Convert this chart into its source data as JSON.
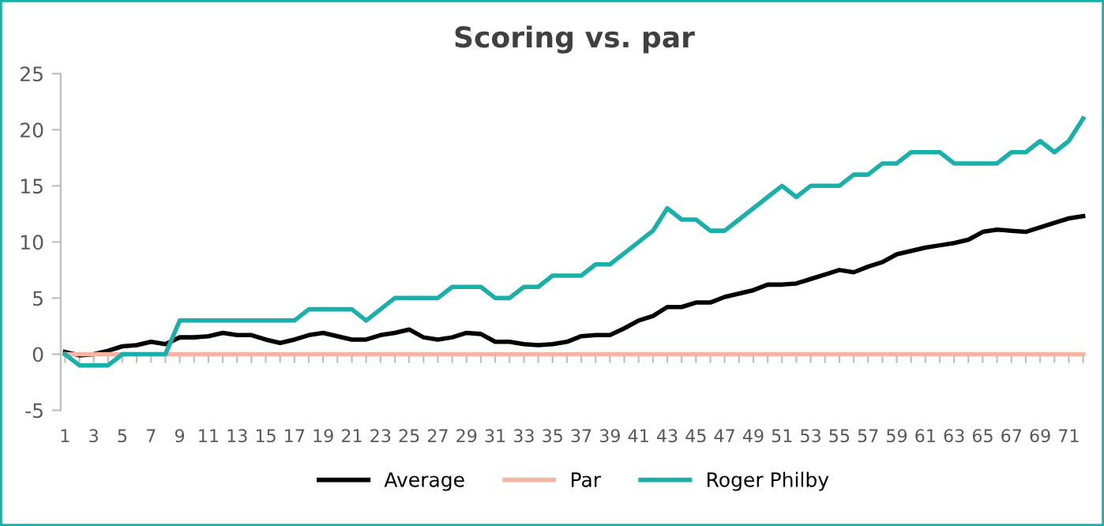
{
  "chart_data": {
    "type": "line",
    "title": "Scoring vs. par",
    "categories": [
      "1",
      null,
      "3",
      null,
      "5",
      null,
      "7",
      null,
      "9",
      null,
      "11",
      null,
      "13",
      null,
      "15",
      null,
      "17",
      null,
      "19",
      null,
      "21",
      null,
      "23",
      null,
      "25",
      null,
      "27",
      null,
      "29",
      null,
      "31",
      null,
      "33",
      null,
      "35",
      null,
      "37",
      null,
      "39",
      null,
      "41",
      null,
      "43",
      null,
      "45",
      null,
      "47",
      null,
      "49",
      null,
      "51",
      null,
      "53",
      null,
      "55",
      null,
      "57",
      null,
      "59",
      null,
      "61",
      null,
      "63",
      null,
      "65",
      null,
      "67",
      null,
      "69",
      null,
      "71",
      null
    ],
    "series": [
      {
        "name": "Average",
        "color": "#000000",
        "values": [
          0.2,
          -0.1,
          0,
          0.3,
          0.7,
          0.8,
          1.1,
          0.9,
          1.5,
          1.5,
          1.6,
          1.9,
          1.7,
          1.7,
          1.3,
          1.0,
          1.3,
          1.7,
          1.9,
          1.6,
          1.3,
          1.3,
          1.7,
          1.9,
          2.2,
          1.5,
          1.3,
          1.5,
          1.9,
          1.8,
          1.1,
          1.1,
          0.9,
          0.8,
          0.9,
          1.1,
          1.6,
          1.7,
          1.7,
          2.3,
          3.0,
          3.4,
          4.2,
          4.2,
          4.6,
          4.6,
          5.1,
          5.4,
          5.7,
          6.2,
          6.2,
          6.3,
          6.7,
          7.1,
          7.5,
          7.3,
          7.8,
          8.2,
          8.9,
          9.2,
          9.5,
          9.7,
          9.9,
          10.2,
          10.9,
          11.1,
          11.0,
          10.9,
          11.3,
          11.7,
          12.1,
          12.3
        ]
      },
      {
        "name": "Par",
        "color": "#f4b6a4",
        "values": [
          0,
          0,
          0,
          0,
          0,
          0,
          0,
          0,
          0,
          0,
          0,
          0,
          0,
          0,
          0,
          0,
          0,
          0,
          0,
          0,
          0,
          0,
          0,
          0,
          0,
          0,
          0,
          0,
          0,
          0,
          0,
          0,
          0,
          0,
          0,
          0,
          0,
          0,
          0,
          0,
          0,
          0,
          0,
          0,
          0,
          0,
          0,
          0,
          0,
          0,
          0,
          0,
          0,
          0,
          0,
          0,
          0,
          0,
          0,
          0,
          0,
          0,
          0,
          0,
          0,
          0,
          0,
          0,
          0,
          0,
          0,
          0
        ]
      },
      {
        "name": "Roger Philby",
        "color": "#1ab0aa",
        "values": [
          0,
          -1,
          -1,
          -1,
          0,
          0,
          0,
          0,
          3,
          3,
          3,
          3,
          3,
          3,
          3,
          3,
          3,
          4,
          4,
          4,
          4,
          3,
          4,
          5,
          5,
          5,
          5,
          6,
          6,
          6,
          5,
          5,
          6,
          6,
          7,
          7,
          7,
          8,
          8,
          9,
          10,
          11,
          13,
          12,
          12,
          11,
          11,
          12,
          13,
          14,
          15,
          14,
          15,
          15,
          15,
          16,
          16,
          17,
          17,
          18,
          18,
          18,
          17,
          17,
          17,
          17,
          18,
          18,
          19,
          18,
          19,
          21
        ]
      }
    ],
    "ylim": [
      -5,
      25
    ],
    "yticks": [
      -5,
      0,
      5,
      10,
      15,
      20,
      25
    ],
    "grid": false,
    "legend": "bottom",
    "marker": "none",
    "line_style": "solid"
  }
}
